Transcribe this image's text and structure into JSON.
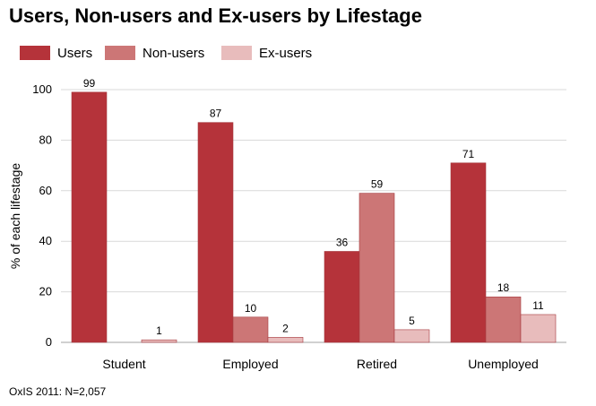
{
  "chart_data": {
    "type": "bar",
    "title": "Users, Non-users and Ex-users by Lifestage",
    "ylabel": "% of each lifestage",
    "xlabel": "",
    "categories": [
      "Student",
      "Employed",
      "Retired",
      "Unemployed"
    ],
    "series": [
      {
        "name": "Users",
        "values": [
          99,
          87,
          36,
          71
        ],
        "color": "#b5333a"
      },
      {
        "name": "Non-users",
        "values": [
          null,
          10,
          59,
          18
        ],
        "color": "#cc7676"
      },
      {
        "name": "Ex-users",
        "values": [
          1,
          2,
          5,
          11
        ],
        "color": "#e8bcbc"
      }
    ],
    "ylim": [
      0,
      100
    ],
    "yticks": [
      0,
      20,
      40,
      60,
      80,
      100
    ],
    "grid": true,
    "legend_position": "top-left",
    "source": "OxIS 2011: N=2,057"
  }
}
